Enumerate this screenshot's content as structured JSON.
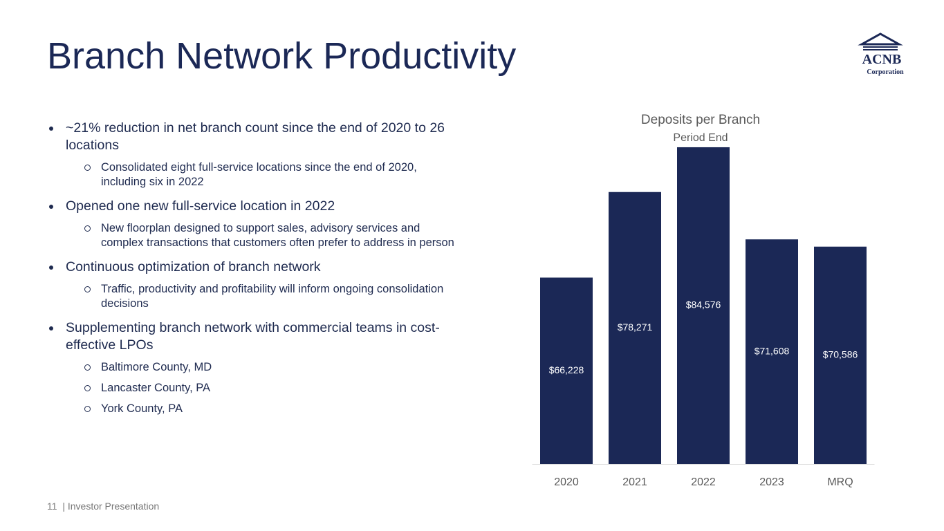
{
  "title": "Branch Network Productivity",
  "logo": {
    "name": "ACNB",
    "subtitle": "Corporation"
  },
  "bullets": [
    {
      "text": "~21% reduction in net branch count since the end of 2020 to 26 locations",
      "subs": [
        "Consolidated eight full-service locations since the end of 2020, including six in 2022"
      ]
    },
    {
      "text": "Opened one new full-service location in 2022",
      "subs": [
        "New floorplan designed to support sales, advisory services and complex transactions that customers often prefer to address in person"
      ]
    },
    {
      "text": "Continuous optimization of branch network",
      "subs": [
        "Traffic, productivity and profitability will inform ongoing consolidation decisions"
      ]
    },
    {
      "text": "Supplementing branch network with commercial teams in cost-effective LPOs",
      "subs": [
        "Baltimore County, MD",
        "Lancaster County, PA",
        "York County, PA"
      ]
    }
  ],
  "footer": {
    "page": "11",
    "text": "| Investor Presentation"
  },
  "chart_data": {
    "type": "bar",
    "title": "Deposits per Branch",
    "subtitle": "Period End",
    "categories": [
      "2020",
      "2021",
      "2022",
      "2023",
      "MRQ"
    ],
    "values": [
      66228,
      78271,
      84576,
      71608,
      70586
    ],
    "value_labels": [
      "$66,228",
      "$78,271",
      "$84,576",
      "$71,608",
      "$70,586"
    ],
    "color": "#1b2856",
    "ylim": [
      40000,
      85000
    ]
  }
}
